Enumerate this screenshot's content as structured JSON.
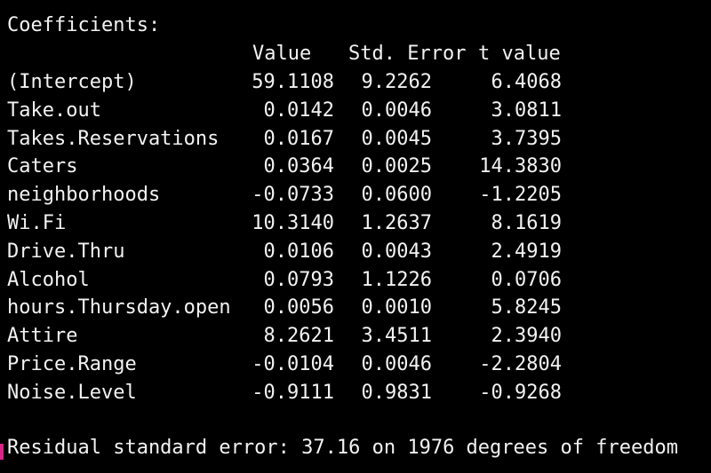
{
  "output": {
    "heading": "Coefficients:",
    "columns": {
      "value": "Value",
      "std_error": "Std. Error",
      "t_value": "t value"
    },
    "rows": [
      {
        "name": "(Intercept)",
        "value": "59.1108",
        "std_error": "9.2262",
        "t_value": "6.4068"
      },
      {
        "name": "Take.out",
        "value": "0.0142",
        "std_error": "0.0046",
        "t_value": "3.0811"
      },
      {
        "name": "Takes.Reservations",
        "value": "0.0167",
        "std_error": "0.0045",
        "t_value": "3.7395"
      },
      {
        "name": "Caters",
        "value": "0.0364",
        "std_error": "0.0025",
        "t_value": "14.3830"
      },
      {
        "name": "neighborhoods",
        "value": "-0.0733",
        "std_error": "0.0600",
        "t_value": "-1.2205"
      },
      {
        "name": "Wi.Fi",
        "value": "10.3140",
        "std_error": "1.2637",
        "t_value": "8.1619"
      },
      {
        "name": "Drive.Thru",
        "value": "0.0106",
        "std_error": "0.0043",
        "t_value": "2.4919"
      },
      {
        "name": "Alcohol",
        "value": "0.0793",
        "std_error": "1.1226",
        "t_value": "0.0706"
      },
      {
        "name": "hours.Thursday.open",
        "value": "0.0056",
        "std_error": "0.0010",
        "t_value": "5.8245"
      },
      {
        "name": "Attire",
        "value": "8.2621",
        "std_error": "3.4511",
        "t_value": "2.3940"
      },
      {
        "name": "Price.Range",
        "value": "-0.0104",
        "std_error": "0.0046",
        "t_value": "-2.2804"
      },
      {
        "name": "Noise.Level",
        "value": "-0.9111",
        "std_error": "0.9831",
        "t_value": "-0.9268"
      }
    ],
    "footer": "Residual standard error: 37.16 on 1976 degrees of freedom"
  },
  "colors": {
    "background": "#000000",
    "text": "#f2f2f2",
    "cursor": "#e0218a"
  }
}
